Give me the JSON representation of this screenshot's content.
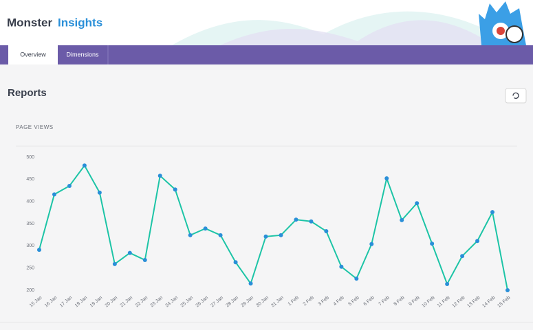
{
  "brand": {
    "part1": "Monster",
    "part2": "Insights"
  },
  "tabs": [
    "Overview",
    "Dimensions"
  ],
  "page_title": "Reports",
  "chart_data": {
    "type": "line",
    "title": "PAGE VIEWS",
    "categories": [
      "15 Jan",
      "16 Jan",
      "17 Jan",
      "18 Jan",
      "19 Jan",
      "20 Jan",
      "21 Jan",
      "22 Jan",
      "23 Jan",
      "24 Jan",
      "25 Jan",
      "26 Jan",
      "27 Jan",
      "28 Jan",
      "29 Jan",
      "30 Jan",
      "31 Jan",
      "1 Feb",
      "2 Feb",
      "3 Feb",
      "4 Feb",
      "5 Feb",
      "6 Feb",
      "7 Feb",
      "8 Feb",
      "9 Feb",
      "10 Feb",
      "11 Feb",
      "12 Feb",
      "13 Feb",
      "14 Feb",
      "15 Feb"
    ],
    "series": [
      {
        "name": "Page views",
        "color": "#1cc4a6",
        "point_color": "#2a8fd8",
        "values": [
          291,
          416,
          435,
          481,
          420,
          259,
          284,
          268,
          458,
          427,
          324,
          339,
          324,
          263,
          215,
          321,
          324,
          359,
          355,
          333,
          253,
          226,
          304,
          452,
          358,
          396,
          305,
          214,
          277,
          311,
          376,
          200
        ]
      }
    ],
    "ylim": [
      200,
      500
    ],
    "yticks": [
      200,
      250,
      300,
      350,
      400,
      450,
      500
    ],
    "grid": false
  }
}
